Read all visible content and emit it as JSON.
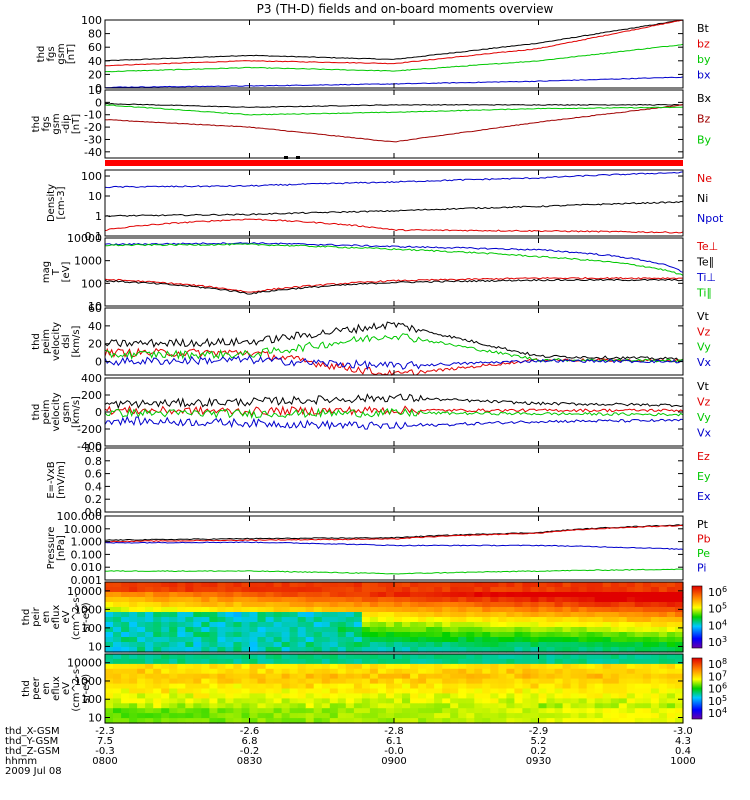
{
  "title": "P3 (TH-D) fields and on-board moments overview",
  "colors": {
    "black": "#000000",
    "red": "#e00000",
    "green": "#00c800",
    "blue": "#0000cc",
    "darkred": "#a00000"
  },
  "ephemeris": {
    "labels": [
      "thd_X-GSM",
      "thd_Y-GSM",
      "thd_Z-GSM",
      "hhmm",
      "2009 Jul 08"
    ],
    "x_values": [
      "-2.3",
      "-2.6",
      "-2.8",
      "-2.9",
      "-3.0"
    ],
    "y_values": [
      "7.5",
      "6.8",
      "6.1",
      "5.2",
      "4.3"
    ],
    "z_values": [
      "-0.3",
      "-0.2",
      "-0.0",
      "0.2",
      "0.4"
    ],
    "times": [
      "0800",
      "0830",
      "0900",
      "0930",
      "1000"
    ]
  },
  "chart_data": [
    {
      "type": "line",
      "panel": "fgs_mag",
      "ylabel": [
        "thd",
        "fgs",
        "gsm",
        "[nT]"
      ],
      "ylim": [
        0,
        100
      ],
      "yticks": [
        "0",
        "20",
        "40",
        "60",
        "80",
        "100"
      ],
      "x": [
        "0800",
        "0830",
        "0900",
        "0930",
        "1000"
      ],
      "series": [
        {
          "name": "Bt",
          "color": "#000000",
          "values": [
            40,
            48,
            42,
            66,
            100
          ]
        },
        {
          "name": "bz",
          "color": "#e00000",
          "values": [
            33,
            40,
            36,
            58,
            100
          ]
        },
        {
          "name": "by",
          "color": "#00c800",
          "values": [
            24,
            30,
            25,
            40,
            64
          ]
        },
        {
          "name": "bx",
          "color": "#0000cc",
          "values": [
            1,
            3,
            6,
            10,
            16
          ]
        }
      ]
    },
    {
      "type": "line",
      "panel": "fgs_dip",
      "ylabel": [
        "thd",
        "fgs",
        "gsm",
        "-dip",
        "[nT]"
      ],
      "ylim": [
        -45,
        10
      ],
      "yticks": [
        "-40",
        "-30",
        "-20",
        "-10",
        "0",
        "10"
      ],
      "x": [
        "0800",
        "0830",
        "0900",
        "0930",
        "1000"
      ],
      "series": [
        {
          "name": "Bx",
          "color": "#000000",
          "values": [
            -1,
            -4,
            -2,
            -2,
            -2
          ]
        },
        {
          "name": "Bz",
          "color": "#a00000",
          "values": [
            -14,
            -20,
            -32,
            -16,
            -2
          ]
        },
        {
          "name": "By",
          "color": "#00c800",
          "values": [
            -2,
            -10,
            -8,
            -5,
            -4
          ]
        }
      ]
    },
    {
      "type": "line",
      "panel": "density",
      "yscale": "log",
      "ylabel": [
        "Density",
        "[cm-3]"
      ],
      "ylim": [
        0.1,
        200
      ],
      "yticks": [
        "0.1",
        "1",
        "10",
        "100"
      ],
      "x": [
        "0800",
        "0830",
        "0900",
        "0930",
        "1000"
      ],
      "series": [
        {
          "name": "Ne",
          "color": "#e00000",
          "values": [
            0.2,
            0.7,
            0.2,
            0.18,
            0.15
          ]
        },
        {
          "name": "Ni",
          "color": "#000000",
          "values": [
            1,
            1.2,
            1.8,
            3,
            5
          ]
        },
        {
          "name": "Npot",
          "color": "#0000cc",
          "values": [
            28,
            32,
            50,
            80,
            150
          ]
        }
      ]
    },
    {
      "type": "line",
      "panel": "temperature",
      "yscale": "log",
      "ylabel": [
        "mag",
        "T",
        "[eV]"
      ],
      "ylim": [
        10,
        10000
      ],
      "yticks": [
        "10",
        "100",
        "1000",
        "10000"
      ],
      "x": [
        "0800",
        "0830",
        "0900",
        "0930",
        "1000"
      ],
      "series": [
        {
          "name": "Te⊥",
          "color": "#e00000",
          "values": [
            150,
            40,
            130,
            170,
            170
          ]
        },
        {
          "name": "Te∥",
          "color": "#000000",
          "values": [
            130,
            35,
            110,
            140,
            140
          ]
        },
        {
          "name": "Ti⊥",
          "color": "#0000cc",
          "values": [
            5200,
            6000,
            4200,
            3000,
            300
          ]
        },
        {
          "name": "Ti∥",
          "color": "#00c800",
          "values": [
            4800,
            5200,
            3200,
            1500,
            220
          ]
        }
      ]
    },
    {
      "type": "line",
      "panel": "peim_velocity_dsl",
      "ylabel": [
        "thd",
        "peim",
        "velocity",
        "dsl",
        "[km/s]"
      ],
      "ylim": [
        -15,
        60
      ],
      "yticks": [
        "0",
        "20",
        "40",
        "60"
      ],
      "x": [
        "0800",
        "0830",
        "0900",
        "0930",
        "1000"
      ],
      "series": [
        {
          "name": "Vt",
          "color": "#000000",
          "values": [
            20,
            22,
            42,
            6,
            3
          ]
        },
        {
          "name": "Vz",
          "color": "#e00000",
          "values": [
            10,
            10,
            -15,
            2,
            1
          ]
        },
        {
          "name": "Vy",
          "color": "#00c800",
          "values": [
            8,
            8,
            30,
            2,
            1
          ]
        },
        {
          "name": "Vx",
          "color": "#0000cc",
          "values": [
            0,
            2,
            -5,
            1,
            0
          ]
        }
      ]
    },
    {
      "type": "line",
      "panel": "peim_velocity_gsm",
      "ylabel": [
        "thd",
        "peim",
        "velocity",
        "gsm",
        "[km/s]"
      ],
      "ylim": [
        -400,
        400
      ],
      "yticks": [
        "-400",
        "-200",
        "0",
        "200",
        "400"
      ],
      "x": [
        "0800",
        "0830",
        "0900",
        "0930",
        "1000"
      ],
      "series": [
        {
          "name": "Vt",
          "color": "#000000",
          "values": [
            90,
            120,
            170,
            100,
            80
          ]
        },
        {
          "name": "Vz",
          "color": "#e00000",
          "values": [
            20,
            10,
            20,
            20,
            20
          ]
        },
        {
          "name": "Vy",
          "color": "#00c800",
          "values": [
            -10,
            -20,
            -10,
            -20,
            -30
          ]
        },
        {
          "name": "Vx",
          "color": "#0000cc",
          "values": [
            -100,
            -130,
            -170,
            -110,
            -100
          ]
        }
      ]
    },
    {
      "type": "line",
      "panel": "efield",
      "ylabel": [
        "E=-VxB",
        "[mV/m]"
      ],
      "ylim": [
        0,
        1
      ],
      "yticks": [
        "0.0",
        "0.2",
        "0.4",
        "0.6",
        "0.8",
        "1.0"
      ],
      "series": [
        {
          "name": "Ez",
          "color": "#e00000",
          "values": []
        },
        {
          "name": "Ey",
          "color": "#00c800",
          "values": []
        },
        {
          "name": "Ex",
          "color": "#0000cc",
          "values": []
        }
      ]
    },
    {
      "type": "line",
      "panel": "pressure",
      "yscale": "log",
      "ylabel": [
        "Pressure",
        "[nPa]"
      ],
      "ylim": [
        0.001,
        100
      ],
      "yticks": [
        "0.001",
        "0.010",
        "0.100",
        "1.000",
        "10.000",
        "100.000"
      ],
      "x": [
        "0800",
        "0830",
        "0900",
        "0930",
        "1000"
      ],
      "series": [
        {
          "name": "Pt",
          "color": "#000000",
          "values": [
            1.3,
            1.7,
            2.0,
            5,
            20
          ]
        },
        {
          "name": "Pb",
          "color": "#e00000",
          "values": [
            1.0,
            1.3,
            1.6,
            4.5,
            18
          ]
        },
        {
          "name": "Pe",
          "color": "#00c800",
          "values": [
            0.005,
            0.005,
            0.003,
            0.005,
            0.007
          ]
        },
        {
          "name": "Pi",
          "color": "#0000cc",
          "values": [
            0.8,
            0.9,
            0.5,
            0.5,
            0.25
          ]
        }
      ]
    },
    {
      "type": "heatmap",
      "panel": "peir_spectrogram",
      "yscale": "log",
      "ylabel": [
        "thd",
        "peir",
        "en",
        "eflux",
        "eV",
        "(cm^2-s-",
        "sr-eV)"
      ],
      "ylim": [
        5,
        30000
      ],
      "yticks": [
        "10",
        "100",
        "1000",
        "10000"
      ],
      "colorbar": {
        "ticks": [
          "10^3",
          "10^4",
          "10^5",
          "10^6"
        ]
      }
    },
    {
      "type": "heatmap",
      "panel": "peer_spectrogram",
      "yscale": "log",
      "ylabel": [
        "thd",
        "peer",
        "en",
        "eflux",
        "eV",
        "(cm^2-s-",
        "sr-eV)"
      ],
      "ylim": [
        5,
        30000
      ],
      "yticks": [
        "10",
        "100",
        "1000",
        "10000"
      ],
      "colorbar": {
        "ticks": [
          "10^4",
          "10^5",
          "10^6",
          "10^7",
          "10^8"
        ]
      }
    }
  ]
}
